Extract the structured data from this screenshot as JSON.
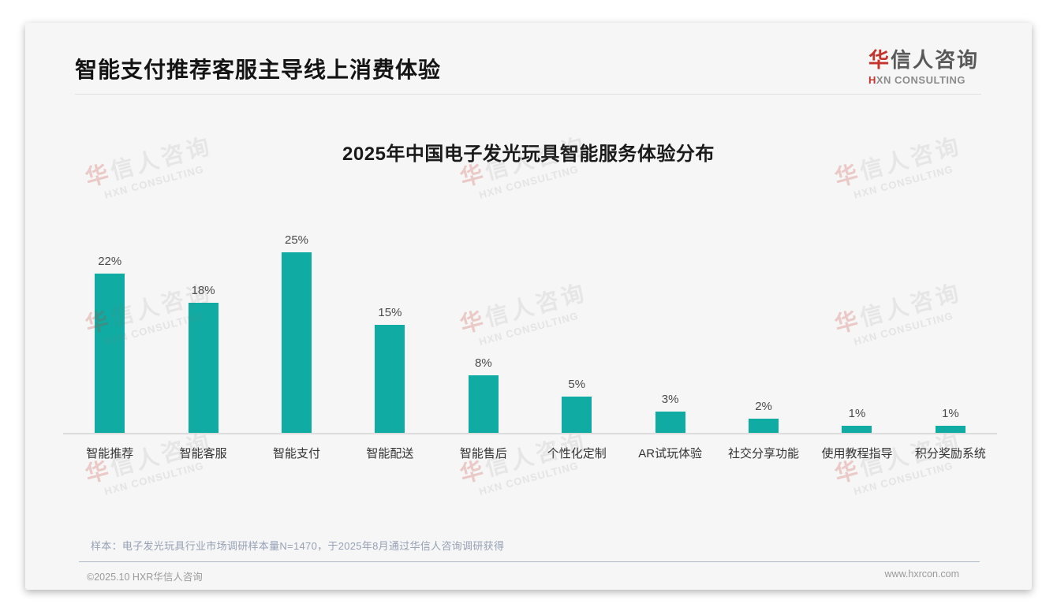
{
  "page": {
    "title": "智能支付推荐客服主导线上消费体验"
  },
  "logo": {
    "cn_accent": "华",
    "cn_rest": "信人咨询",
    "en_accent": "H",
    "en_rest": "XN CONSULTING",
    "accent_color": "#c5342c"
  },
  "chart_data": {
    "type": "bar",
    "title": "2025年中国电子发光玩具智能服务体验分布",
    "categories": [
      "智能推荐",
      "智能客服",
      "智能支付",
      "智能配送",
      "智能售后",
      "个性化定制",
      "AR试玩体验",
      "社交分享功能",
      "使用教程指导",
      "积分奖励系统"
    ],
    "values": [
      22,
      18,
      25,
      15,
      8,
      5,
      3,
      2,
      1,
      1
    ],
    "value_labels": [
      "22%",
      "18%",
      "25%",
      "15%",
      "8%",
      "5%",
      "3%",
      "2%",
      "1%",
      "1%"
    ],
    "unit": "%",
    "bar_color": "#10aba3",
    "ylim": [
      0,
      27
    ],
    "grid": false,
    "legend": false,
    "xlabel": "",
    "ylabel": ""
  },
  "footnote": "样本：电子发光玩具行业市场调研样本量N=1470，于2025年8月通过华信人咨询调研获得",
  "footer": {
    "copyright": "©2025.10 HXR华信人咨询",
    "website": "www.hxrcon.com"
  },
  "watermark": {
    "cn_accent": "华",
    "cn_rest": "信人咨询",
    "en": "HXN CONSULTING"
  }
}
